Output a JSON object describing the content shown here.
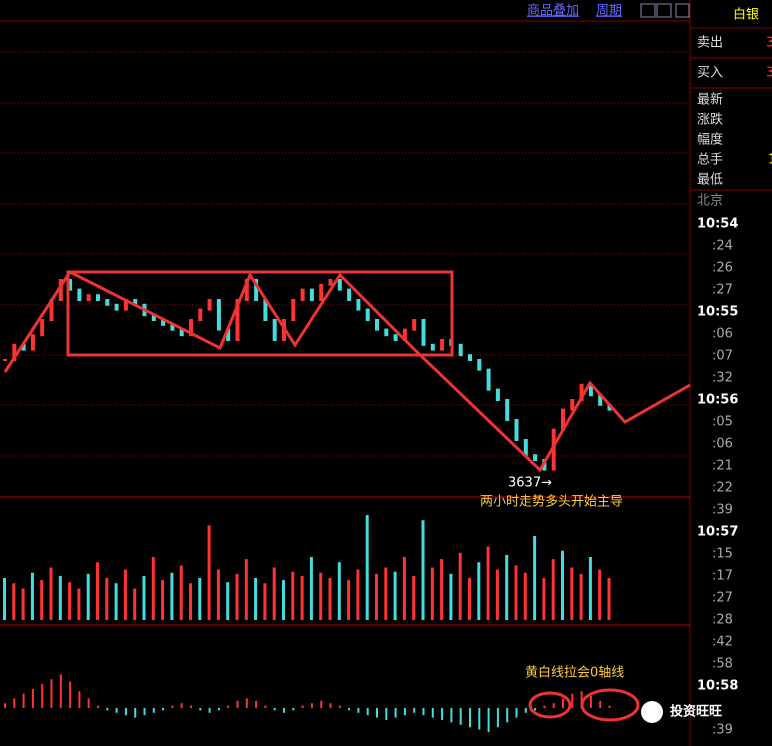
{
  "toolbar": {
    "items": [
      "商品叠加",
      "周期"
    ]
  },
  "panel": {
    "symbol": "白银",
    "sell": "卖出",
    "sell_value": "3",
    "buy": "买入",
    "buy_value": "3",
    "fields": [
      "最新",
      "涨跌",
      "幅度",
      "总手",
      "最低"
    ],
    "field_value": "1",
    "city": "北京",
    "times": [
      "10:54",
      ":24",
      ":26",
      ":27",
      "10:55",
      ":06",
      ":07",
      ":32",
      "10:56",
      ":05",
      ":06",
      ":21",
      ":22",
      ":39",
      "10:57",
      ":15",
      ":17",
      ":27",
      ":28",
      ":42",
      ":58",
      "10:58",
      ":39"
    ]
  },
  "chart": {
    "ylim": [
      3634,
      3696
    ],
    "price": [
      3651,
      3652.9,
      3652.3,
      3654.1,
      3656,
      3658.5,
      3661,
      3659.8,
      3658.5,
      3659.1,
      3658.5,
      3657.9,
      3657.3,
      3658.5,
      3657.9,
      3656.6,
      3656,
      3655.4,
      3654.8,
      3654.1,
      3656,
      3657.3,
      3658.5,
      3654.8,
      3653.5,
      3658.5,
      3661,
      3658.5,
      3656,
      3653.5,
      3656,
      3658.5,
      3659.8,
      3658.5,
      3660.4,
      3661,
      3659.8,
      3658.5,
      3657.3,
      3656,
      3654.8,
      3654.1,
      3653.5,
      3654.8,
      3656,
      3652.9,
      3652.3,
      3653.5,
      3652.9,
      3651.6,
      3651,
      3649.8,
      3647.3,
      3646,
      3643.5,
      3641,
      3639.1,
      3638.5,
      3637.3,
      3642.3,
      3644.8,
      3646,
      3647.9,
      3646.6,
      3645.4,
      3644.8
    ],
    "volume": [
      40,
      35,
      30,
      45,
      38,
      50,
      42,
      36,
      30,
      44,
      55,
      40,
      35,
      48,
      30,
      42,
      60,
      38,
      45,
      52,
      35,
      40,
      90,
      48,
      36,
      44,
      58,
      40,
      35,
      50,
      38,
      46,
      42,
      60,
      45,
      40,
      55,
      38,
      48,
      100,
      44,
      50,
      46,
      60,
      42,
      95,
      50,
      58,
      44,
      64,
      40,
      55,
      70,
      48,
      62,
      52,
      45,
      80,
      40,
      58,
      66,
      50,
      44,
      60,
      48,
      40
    ],
    "macd": [
      4,
      8,
      12,
      16,
      20,
      24,
      28,
      22,
      14,
      8,
      2,
      -2,
      -4,
      -6,
      -8,
      -6,
      -4,
      -2,
      2,
      4,
      2,
      -2,
      -4,
      -2,
      2,
      6,
      8,
      6,
      2,
      -2,
      -4,
      -2,
      2,
      4,
      6,
      4,
      2,
      -2,
      -4,
      -6,
      -8,
      -10,
      -8,
      -6,
      -4,
      -6,
      -8,
      -10,
      -12,
      -14,
      -16,
      -18,
      -20,
      -16,
      -12,
      -8,
      -4,
      -2,
      2,
      4,
      8,
      12,
      14,
      10,
      6,
      2
    ]
  },
  "annotations": {
    "low": "3637→",
    "trend": "两小时走势多头开始主导",
    "macd_note": "黄白线拉会0轴线",
    "brand": "投资旺旺"
  }
}
